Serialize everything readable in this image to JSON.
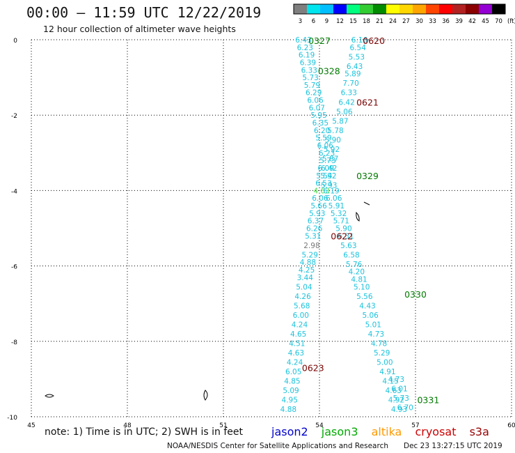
{
  "header": {
    "title": "00:00 – 11:59 UTC 12/22/2019",
    "subtitle": "12 hour collection of altimeter wave heights"
  },
  "legend": {
    "unit": "(ft)",
    "bins": [
      {
        "label": "3",
        "color": "#7f7f7f"
      },
      {
        "label": "6",
        "color": "#00e5ee"
      },
      {
        "label": "9",
        "color": "#00bfff"
      },
      {
        "label": "12",
        "color": "#0000ff"
      },
      {
        "label": "15",
        "color": "#00ff7f"
      },
      {
        "label": "18",
        "color": "#32cd32"
      },
      {
        "label": "21",
        "color": "#008b00"
      },
      {
        "label": "24",
        "color": "#ffff00"
      },
      {
        "label": "27",
        "color": "#ffd700"
      },
      {
        "label": "30",
        "color": "#ffa500"
      },
      {
        "label": "33",
        "color": "#ff4500"
      },
      {
        "label": "36",
        "color": "#ff0000"
      },
      {
        "label": "39",
        "color": "#b22222"
      },
      {
        "label": "42",
        "color": "#8b0000"
      },
      {
        "label": "45",
        "color": "#9400d3"
      },
      {
        "label": "70",
        "color": "#000000"
      }
    ]
  },
  "notes": {
    "text": "note:  1) Time is in UTC;  2) SWH is in feet",
    "satellites": [
      {
        "name": "jason2",
        "color": "#0000cc"
      },
      {
        "name": "jason3",
        "color": "#00aa00"
      },
      {
        "name": "altika",
        "color": "#ff9900"
      },
      {
        "name": "cryosat",
        "color": "#cc0000"
      },
      {
        "name": "s3a",
        "color": "#990000"
      }
    ]
  },
  "footer": {
    "credit": "NOAA/NESDIS Center for Satellite Applications and Research",
    "stamp": "Dec 23 13:27:15 UTC 2019"
  },
  "colors": {
    "obs": "#1cc3dc",
    "obs_green": "#4cdc4c",
    "obs_gray": "#777777",
    "time_green": "#007a00",
    "time_darkred": "#7a0000",
    "grid": "#000000"
  },
  "chart_data": {
    "type": "scatter",
    "xlim": [
      45,
      60
    ],
    "ylim": [
      -10,
      0
    ],
    "xticks": [
      45,
      48,
      51,
      54,
      57,
      60
    ],
    "yticks": [
      0,
      -2,
      -4,
      -6,
      -8,
      -10
    ],
    "grid": true,
    "tracks": [
      {
        "points": [
          {
            "x": 53.5,
            "y": 0.0,
            "v": "6.43"
          },
          {
            "x": 53.55,
            "y": -0.2,
            "v": "6.23"
          },
          {
            "x": 53.6,
            "y": -0.4,
            "v": "6.19"
          },
          {
            "x": 53.64,
            "y": -0.6,
            "v": "6.39"
          },
          {
            "x": 53.68,
            "y": -0.8,
            "v": "6.33"
          },
          {
            "x": 53.72,
            "y": -1.0,
            "v": "5.73"
          },
          {
            "x": 53.77,
            "y": -1.2,
            "v": "5.79"
          },
          {
            "x": 53.82,
            "y": -1.4,
            "v": "6.29"
          },
          {
            "x": 53.87,
            "y": -1.6,
            "v": "6.06"
          },
          {
            "x": 53.92,
            "y": -1.8,
            "v": "6.07"
          },
          {
            "x": 53.98,
            "y": -2.0,
            "v": "5.95"
          },
          {
            "x": 54.03,
            "y": -2.2,
            "v": "6.35"
          },
          {
            "x": 54.08,
            "y": -2.4,
            "v": "6.20"
          },
          {
            "x": 54.13,
            "y": -2.6,
            "v": "5.59"
          },
          {
            "x": 54.18,
            "y": -2.8,
            "v": "6.06"
          },
          {
            "x": 54.23,
            "y": -3.0,
            "v": "6.23"
          },
          {
            "x": 54.26,
            "y": -3.2,
            "v": "5.73"
          },
          {
            "x": 54.2,
            "y": -3.4,
            "v": "6.09"
          },
          {
            "x": 54.15,
            "y": -3.6,
            "v": "5.54"
          },
          {
            "x": 54.13,
            "y": -3.8,
            "v": "6.53"
          },
          {
            "x": 54.07,
            "y": -4.0,
            "v": "4.63",
            "c": "green"
          },
          {
            "x": 54.02,
            "y": -4.2,
            "v": "6.06"
          },
          {
            "x": 53.98,
            "y": -4.4,
            "v": "5.66"
          },
          {
            "x": 53.93,
            "y": -4.6,
            "v": "5.93"
          },
          {
            "x": 53.88,
            "y": -4.8,
            "v": "6.37"
          },
          {
            "x": 53.84,
            "y": -5.0,
            "v": "6.26"
          },
          {
            "x": 53.8,
            "y": -5.2,
            "v": "5.31"
          },
          {
            "x": 53.76,
            "y": -5.45,
            "v": "2.98",
            "c": "gray"
          },
          {
            "x": 53.7,
            "y": -5.7,
            "v": "5.29"
          },
          {
            "x": 53.64,
            "y": -5.9,
            "v": "4.88"
          },
          {
            "x": 53.6,
            "y": -6.1,
            "v": "4.25"
          },
          {
            "x": 53.55,
            "y": -6.3,
            "v": "3.44"
          },
          {
            "x": 53.52,
            "y": -6.55,
            "v": "5.04"
          },
          {
            "x": 53.48,
            "y": -6.8,
            "v": "4.26"
          },
          {
            "x": 53.45,
            "y": -7.05,
            "v": "5.68"
          },
          {
            "x": 53.42,
            "y": -7.3,
            "v": "6.00"
          },
          {
            "x": 53.38,
            "y": -7.55,
            "v": "4.24"
          },
          {
            "x": 53.34,
            "y": -7.8,
            "v": "4.65"
          },
          {
            "x": 53.3,
            "y": -8.05,
            "v": "4.51"
          },
          {
            "x": 53.27,
            "y": -8.3,
            "v": "4.63"
          },
          {
            "x": 53.23,
            "y": -8.55,
            "v": "4.24"
          },
          {
            "x": 53.19,
            "y": -8.8,
            "v": "6.05"
          },
          {
            "x": 53.15,
            "y": -9.05,
            "v": "4.85"
          },
          {
            "x": 53.11,
            "y": -9.3,
            "v": "5.09"
          },
          {
            "x": 53.07,
            "y": -9.55,
            "v": "4.95"
          },
          {
            "x": 53.03,
            "y": -9.8,
            "v": "4.88"
          }
        ]
      },
      {
        "points": [
          {
            "x": 55.25,
            "y": 0.0,
            "v": "6.16"
          },
          {
            "x": 55.2,
            "y": -0.2,
            "v": "6.54"
          },
          {
            "x": 55.16,
            "y": -0.45,
            "v": "5.53"
          },
          {
            "x": 55.1,
            "y": -0.7,
            "v": "6.43"
          },
          {
            "x": 55.04,
            "y": -0.9,
            "v": "5.89"
          },
          {
            "x": 54.98,
            "y": -1.15,
            "v": "7.70"
          },
          {
            "x": 54.92,
            "y": -1.4,
            "v": "6.33"
          },
          {
            "x": 54.85,
            "y": -1.65,
            "v": "6.42"
          },
          {
            "x": 54.78,
            "y": -1.9,
            "v": "5.06"
          },
          {
            "x": 54.65,
            "y": -2.15,
            "v": "5.87"
          },
          {
            "x": 54.5,
            "y": -2.4,
            "v": "5.78"
          },
          {
            "x": 54.42,
            "y": -2.65,
            "v": "5.90"
          },
          {
            "x": 54.38,
            "y": -2.9,
            "v": "5.92"
          },
          {
            "x": 54.34,
            "y": -3.15,
            "v": "5.87"
          },
          {
            "x": 54.3,
            "y": -3.4,
            "v": "6.42"
          },
          {
            "x": 54.28,
            "y": -3.6,
            "v": "5.92"
          },
          {
            "x": 54.3,
            "y": -3.85,
            "v": "5.93"
          },
          {
            "x": 54.37,
            "y": -4.0,
            "v": "6.19"
          },
          {
            "x": 54.45,
            "y": -4.2,
            "v": "6.06"
          },
          {
            "x": 54.53,
            "y": -4.4,
            "v": "5.91"
          },
          {
            "x": 54.6,
            "y": -4.6,
            "v": "5.32"
          },
          {
            "x": 54.68,
            "y": -4.8,
            "v": "5.71"
          },
          {
            "x": 54.76,
            "y": -5.0,
            "v": "5.90"
          },
          {
            "x": 54.83,
            "y": -5.2,
            "v": "6.31"
          },
          {
            "x": 54.91,
            "y": -5.45,
            "v": "5.63"
          },
          {
            "x": 55.0,
            "y": -5.7,
            "v": "6.58"
          },
          {
            "x": 55.08,
            "y": -5.95,
            "v": "5.76"
          },
          {
            "x": 55.16,
            "y": -6.15,
            "v": "4.20"
          },
          {
            "x": 55.24,
            "y": -6.35,
            "v": "4.81"
          },
          {
            "x": 55.32,
            "y": -6.55,
            "v": "5.10"
          },
          {
            "x": 55.41,
            "y": -6.8,
            "v": "5.56"
          },
          {
            "x": 55.5,
            "y": -7.05,
            "v": "4.43"
          },
          {
            "x": 55.59,
            "y": -7.3,
            "v": "5.06"
          },
          {
            "x": 55.68,
            "y": -7.55,
            "v": "5.01"
          },
          {
            "x": 55.77,
            "y": -7.8,
            "v": "4.73"
          },
          {
            "x": 55.86,
            "y": -8.05,
            "v": "4.78"
          },
          {
            "x": 55.95,
            "y": -8.3,
            "v": "5.29"
          },
          {
            "x": 56.04,
            "y": -8.55,
            "v": "5.00"
          },
          {
            "x": 56.13,
            "y": -8.8,
            "v": "4.91"
          },
          {
            "x": 56.22,
            "y": -9.05,
            "v": "4.15"
          },
          {
            "x": 56.31,
            "y": -9.3,
            "v": "4.63"
          },
          {
            "x": 56.4,
            "y": -9.55,
            "v": "4.92"
          },
          {
            "x": 56.49,
            "y": -9.8,
            "v": "4.93"
          }
        ]
      }
    ],
    "extra_points": [
      {
        "x": 56.4,
        "y": -9.0,
        "v": "4.73"
      },
      {
        "x": 56.5,
        "y": -9.25,
        "v": "6.01"
      },
      {
        "x": 56.55,
        "y": -9.5,
        "v": "5.73"
      },
      {
        "x": 56.68,
        "y": -9.75,
        "v": "6.70"
      }
    ],
    "time_labels": [
      {
        "x": 54.0,
        "y": -0.02,
        "label": "0327",
        "c": "green"
      },
      {
        "x": 55.7,
        "y": -0.02,
        "label": "0620",
        "c": "darkred"
      },
      {
        "x": 54.3,
        "y": -0.82,
        "label": "0328",
        "c": "green"
      },
      {
        "x": 55.5,
        "y": -1.65,
        "label": "0621",
        "c": "darkred"
      },
      {
        "x": 55.5,
        "y": -3.6,
        "label": "0329",
        "c": "green"
      },
      {
        "x": 54.7,
        "y": -5.2,
        "label": "0622",
        "c": "darkred"
      },
      {
        "x": 57.0,
        "y": -6.75,
        "label": "0330",
        "c": "green"
      },
      {
        "x": 53.8,
        "y": -8.7,
        "label": "0623",
        "c": "darkred"
      },
      {
        "x": 57.4,
        "y": -9.55,
        "label": "0331",
        "c": "green"
      }
    ]
  }
}
